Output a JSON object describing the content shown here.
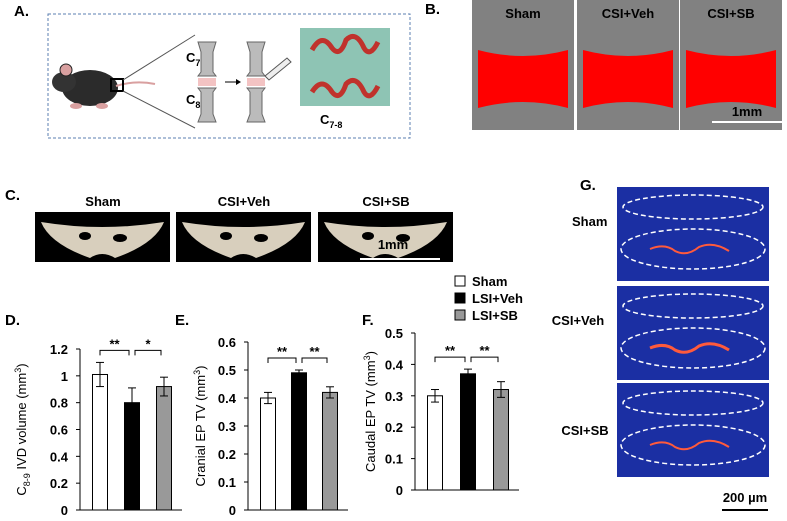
{
  "panels": {
    "a": "A.",
    "b": "B.",
    "c": "C.",
    "g": "G."
  },
  "panel_a": {
    "c7": "C7",
    "c8": "C8",
    "c78": "C7-8"
  },
  "panel_b": {
    "labels": [
      "Sham",
      "CSI+Veh",
      "CSI+SB"
    ],
    "scale": "1mm"
  },
  "panel_c": {
    "labels": [
      "Sham",
      "CSI+Veh",
      "CSI+SB"
    ],
    "scale": "1mm"
  },
  "panel_g": {
    "labels": [
      "Sham",
      "CSI+Veh",
      "CSI+SB"
    ],
    "scale": "200 µm"
  },
  "legend": [
    {
      "name": "Sham",
      "color": "#ffffff"
    },
    {
      "name": "LSI+Veh",
      "color": "#000000"
    },
    {
      "name": "LSI+SB",
      "color": "#999999"
    }
  ],
  "chart_data": [
    {
      "type": "bar",
      "panel": "D.",
      "ylabel": "C8-9 IVD volume (mm3)",
      "categories": [
        null,
        null,
        null
      ],
      "values": [
        1.01,
        0.8,
        0.92
      ],
      "errors": [
        0.09,
        0.11,
        0.07
      ],
      "ylim": [
        0,
        1.2
      ],
      "yticks": [
        0,
        0.2,
        0.4,
        0.6,
        0.8,
        1,
        1.2
      ],
      "annotations": [
        {
          "text": "**",
          "from": 0,
          "to": 1
        },
        {
          "text": "*",
          "from": 1,
          "to": 2
        }
      ]
    },
    {
      "type": "bar",
      "panel": "E.",
      "ylabel": "Cranial EP TV (mm3)",
      "categories": [
        null,
        null,
        null
      ],
      "values": [
        0.4,
        0.49,
        0.42
      ],
      "errors": [
        0.02,
        0.01,
        0.02
      ],
      "ylim": [
        0,
        0.6
      ],
      "yticks": [
        0,
        0.1,
        0.2,
        0.3,
        0.4,
        0.5,
        0.6
      ],
      "annotations": [
        {
          "text": "**",
          "from": 0,
          "to": 1
        },
        {
          "text": "**",
          "from": 1,
          "to": 2
        }
      ]
    },
    {
      "type": "bar",
      "panel": "F.",
      "ylabel": "Caudal EP TV (mm3)",
      "categories": [
        null,
        null,
        null
      ],
      "values": [
        0.3,
        0.37,
        0.32
      ],
      "errors": [
        0.02,
        0.015,
        0.025
      ],
      "ylim": [
        0,
        0.5
      ],
      "yticks": [
        0,
        0.1,
        0.2,
        0.3,
        0.4,
        0.5
      ],
      "annotations": [
        {
          "text": "**",
          "from": 0,
          "to": 1
        },
        {
          "text": "**",
          "from": 1,
          "to": 2
        }
      ]
    }
  ]
}
